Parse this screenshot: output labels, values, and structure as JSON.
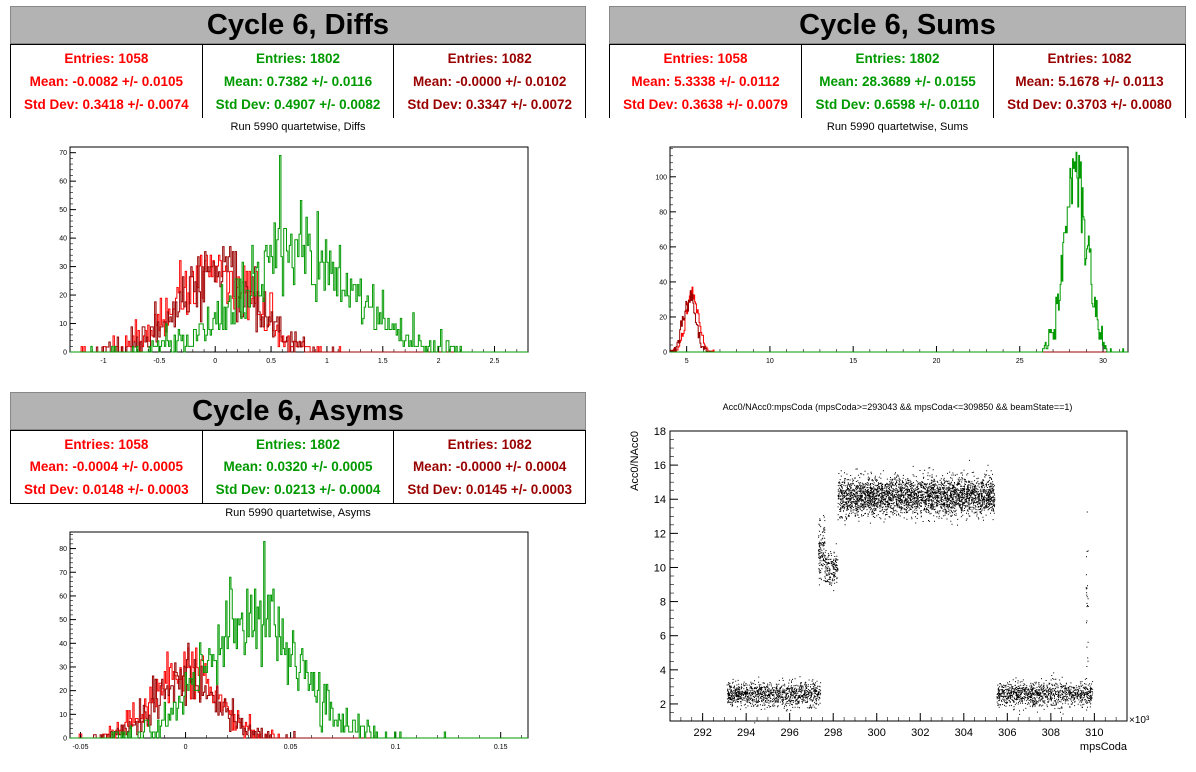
{
  "colors": {
    "c1": "#ff0000",
    "c2": "#009900",
    "c3": "#990000"
  },
  "panels": {
    "diffs": {
      "title": "Cycle 6, Diffs",
      "stats": [
        {
          "entries": "Entries: 1058",
          "mean": "Mean: -0.0082 +/- 0.0105",
          "std": "Std Dev: 0.3418 +/- 0.0074"
        },
        {
          "entries": "Entries: 1802",
          "mean": "Mean: 0.7382 +/- 0.0116",
          "std": "Std Dev: 0.4907 +/- 0.0082"
        },
        {
          "entries": "Entries: 1082",
          "mean": "Mean: -0.0000 +/- 0.0102",
          "std": "Std Dev: 0.3347 +/- 0.0072"
        }
      ],
      "chart_title": "Run 5990 quartetwise, Diffs"
    },
    "sums": {
      "title": "Cycle 6, Sums",
      "stats": [
        {
          "entries": "Entries: 1058",
          "mean": "Mean: 5.3338 +/- 0.0112",
          "std": "Std Dev: 0.3638 +/- 0.0079"
        },
        {
          "entries": "Entries: 1802",
          "mean": "Mean: 28.3689 +/- 0.0155",
          "std": "Std Dev: 0.6598 +/- 0.0110"
        },
        {
          "entries": "Entries: 1082",
          "mean": "Mean: 5.1678 +/- 0.0113",
          "std": "Std Dev: 0.3703 +/- 0.0080"
        }
      ],
      "chart_title": "Run 5990 quartetwise, Sums"
    },
    "asyms": {
      "title": "Cycle 6, Asyms",
      "stats": [
        {
          "entries": "Entries: 1058",
          "mean": "Mean: -0.0004 +/- 0.0005",
          "std": "Std Dev: 0.0148 +/- 0.0003"
        },
        {
          "entries": "Entries: 1802",
          "mean": "Mean: 0.0320 +/- 0.0005",
          "std": "Std Dev: 0.0213 +/- 0.0004"
        },
        {
          "entries": "Entries: 1082",
          "mean": "Mean: -0.0000 +/- 0.0004",
          "std": "Std Dev: 0.0145 +/- 0.0003"
        }
      ],
      "chart_title": "Run 5990 quartetwise, Asyms"
    },
    "scatter": {
      "chart_title": "Acc0/NAcc0:mpsCoda (mpsCoda>=293043 && mpsCoda<=309850 && beamState==1)"
    }
  },
  "chart_data": [
    {
      "id": "diffs",
      "type": "histogram (step)",
      "title": "Run 5990 quartetwise, Diffs",
      "xlim": [
        -1.3,
        2.8
      ],
      "ylim": [
        0,
        72
      ],
      "xticks": [
        -1,
        -0.5,
        0,
        0.5,
        1,
        1.5,
        2,
        2.5
      ],
      "xtick_labels": [
        "-1",
        "-0.5",
        "0",
        "0.5",
        "1",
        "1.5",
        "2",
        "2.5"
      ],
      "yticks": [
        0,
        10,
        20,
        30,
        40,
        50,
        60,
        70
      ],
      "ytick_labels": [
        "0",
        "10",
        "20",
        "30",
        "40",
        "50",
        "60",
        "70"
      ],
      "series": [
        {
          "color": "#ff0000",
          "entries": 1058,
          "mean": -0.0082,
          "std": 0.3418,
          "peak": 34
        },
        {
          "color": "#990000",
          "entries": 1082,
          "mean": 0.0,
          "std": 0.3347,
          "peak": 37
        },
        {
          "color": "#009900",
          "entries": 1802,
          "mean": 0.7382,
          "std": 0.4907,
          "peak": 69
        }
      ],
      "grid": false
    },
    {
      "id": "sums",
      "type": "histogram (step)",
      "title": "Run 5990 quartetwise, Sums",
      "xlim": [
        4,
        31.5
      ],
      "ylim": [
        0,
        117
      ],
      "xticks": [
        5,
        10,
        15,
        20,
        25,
        30
      ],
      "xtick_labels": [
        "5",
        "10",
        "15",
        "20",
        "25",
        "30"
      ],
      "yticks": [
        0,
        20,
        40,
        60,
        80,
        100
      ],
      "ytick_labels": [
        "0",
        "20",
        "40",
        "60",
        "80",
        "100"
      ],
      "series": [
        {
          "color": "#ff0000",
          "entries": 1058,
          "mean": 5.3338,
          "std": 0.3638,
          "peak": 37
        },
        {
          "color": "#990000",
          "entries": 1082,
          "mean": 5.1678,
          "std": 0.3703,
          "peak": 35
        },
        {
          "color": "#009900",
          "entries": 1802,
          "mean": 28.3689,
          "std": 0.6598,
          "peak": 114
        }
      ],
      "grid": false
    },
    {
      "id": "asyms",
      "type": "histogram (step)",
      "title": "Run 5990 quartetwise, Asyms",
      "xlim": [
        -0.055,
        0.163
      ],
      "ylim": [
        0,
        87
      ],
      "xticks": [
        -0.05,
        0,
        0.05,
        0.1,
        0.15
      ],
      "xtick_labels": [
        "-0.05",
        "0",
        "0.05",
        "0.1",
        "0.15"
      ],
      "yticks": [
        0,
        10,
        20,
        30,
        40,
        50,
        60,
        70,
        80
      ],
      "ytick_labels": [
        "0",
        "10",
        "20",
        "30",
        "40",
        "50",
        "60",
        "70",
        "80"
      ],
      "series": [
        {
          "color": "#ff0000",
          "entries": 1058,
          "mean": -0.0004,
          "std": 0.0148,
          "peak": 38
        },
        {
          "color": "#990000",
          "entries": 1082,
          "mean": 0.0,
          "std": 0.0145,
          "peak": 40
        },
        {
          "color": "#009900",
          "entries": 1802,
          "mean": 0.032,
          "std": 0.0213,
          "peak": 83
        }
      ],
      "grid": false
    },
    {
      "id": "scatter",
      "type": "scatter",
      "title": "Acc0/NAcc0:mpsCoda (mpsCoda>=293043 && mpsCoda<=309850 && beamState==1)",
      "xlabel": "mpsCoda",
      "ylabel": "Acc0/NAcc0",
      "x_multiplier": "×10³",
      "xlim": [
        290.5,
        311.5
      ],
      "ylim": [
        1,
        18
      ],
      "xticks": [
        292,
        294,
        296,
        298,
        300,
        302,
        304,
        306,
        308,
        310
      ],
      "xtick_labels": [
        "292",
        "294",
        "296",
        "298",
        "300",
        "302",
        "304",
        "306",
        "308",
        "310"
      ],
      "yticks": [
        2,
        4,
        6,
        8,
        10,
        12,
        14,
        16,
        18
      ],
      "ytick_labels": [
        "2",
        "4",
        "6",
        "8",
        "10",
        "12",
        "14",
        "16",
        "18"
      ],
      "clusters": [
        {
          "x_range": [
            293.1,
            297.4
          ],
          "y_center": 2.6,
          "y_spread": 0.35
        },
        {
          "x_range": [
            297.3,
            297.6
          ],
          "y_center": 11.0,
          "y_spread": 0.9
        },
        {
          "x_range": [
            297.6,
            298.2
          ],
          "y_center": 10.0,
          "y_spread": 0.5
        },
        {
          "x_range": [
            298.2,
            305.4
          ],
          "y_center": 14.2,
          "y_spread": 0.55
        },
        {
          "x_range": [
            305.5,
            309.9
          ],
          "y_center": 2.6,
          "y_spread": 0.35
        },
        {
          "x_range": [
            309.6,
            309.7
          ],
          "y_center": 8.0,
          "y_spread": 2.5
        }
      ],
      "grid": false
    }
  ]
}
